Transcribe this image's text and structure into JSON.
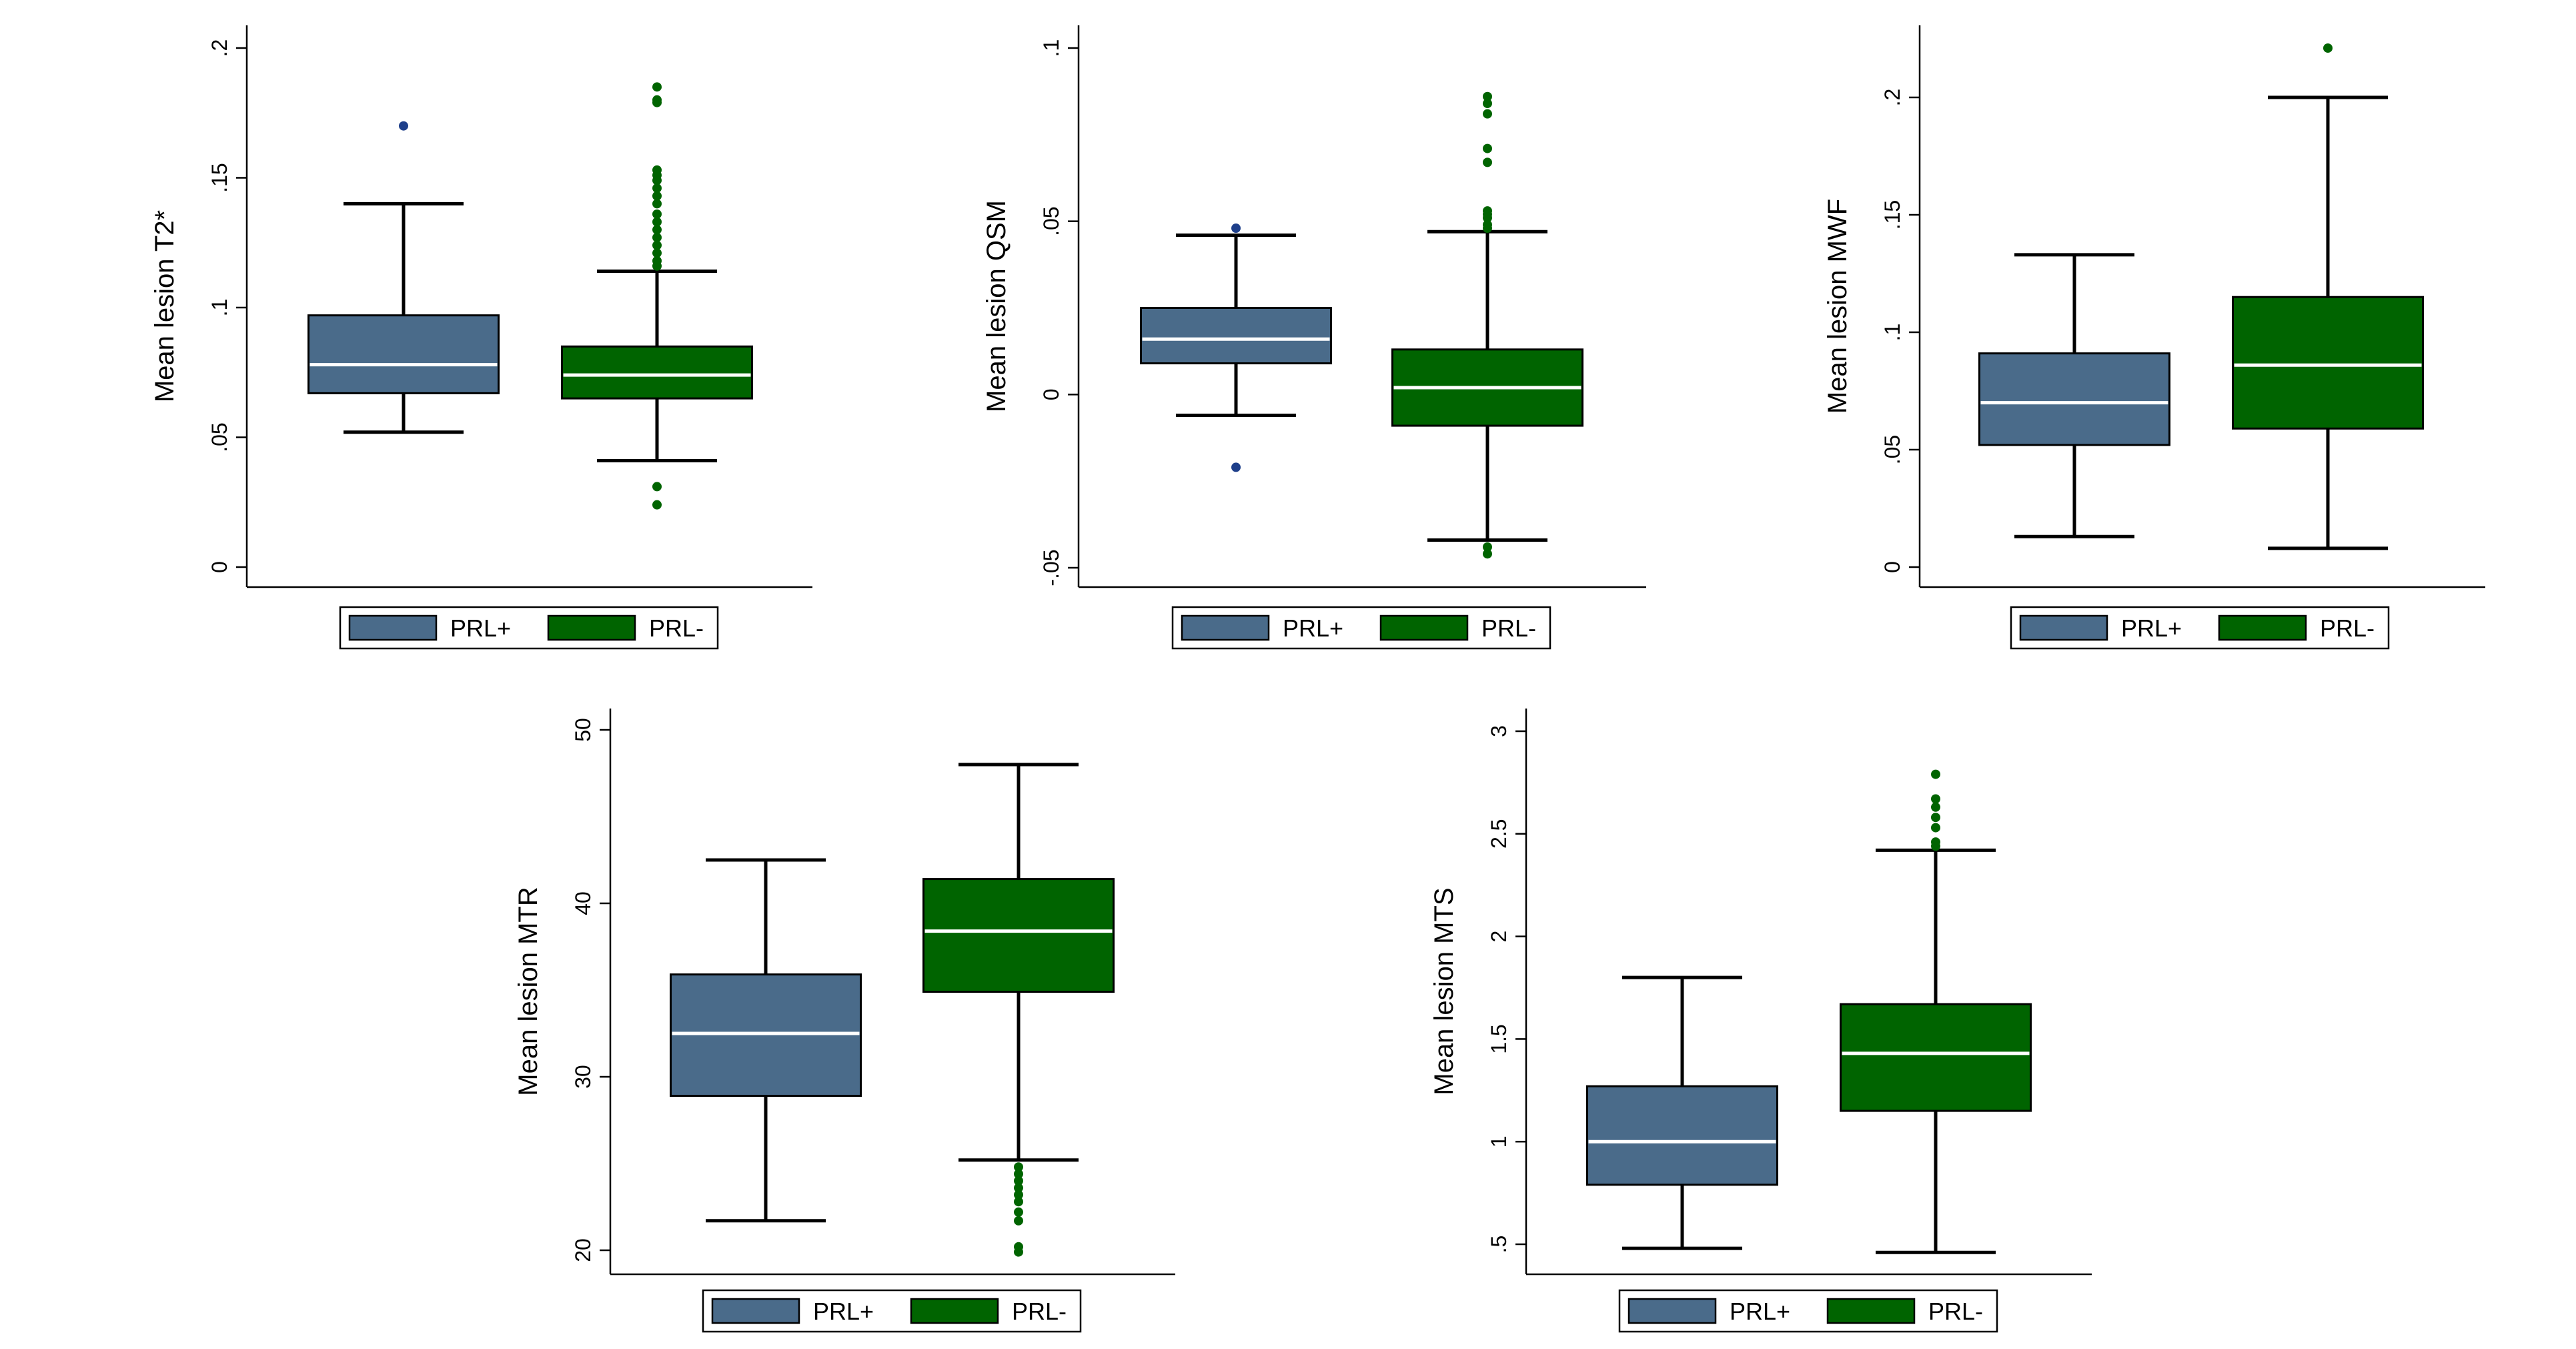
{
  "colors": {
    "prl_pos": "#4a6b8a",
    "prl_neg": "#006400",
    "outlier_pos": "#1e3f8a",
    "outlier_neg": "#006400"
  },
  "chart_data": [
    {
      "type": "box",
      "title": "",
      "ylabel": "Mean lesion T2*",
      "ylim": [
        0,
        0.2
      ],
      "yticks": [
        0,
        0.05,
        0.1,
        0.15,
        0.2
      ],
      "ytick_labels": [
        "0",
        ".05",
        ".1",
        ".15",
        ".2"
      ],
      "legend": [
        "PRL+",
        "PRL-"
      ],
      "series": [
        {
          "name": "PRL+",
          "whisker_low": 0.052,
          "q1": 0.067,
          "median": 0.078,
          "q3": 0.097,
          "whisker_high": 0.14,
          "outliers": [
            0.17
          ]
        },
        {
          "name": "PRL-",
          "whisker_low": 0.041,
          "q1": 0.065,
          "median": 0.074,
          "q3": 0.085,
          "whisker_high": 0.114,
          "outliers": [
            0.024,
            0.031,
            0.116,
            0.118,
            0.121,
            0.124,
            0.127,
            0.13,
            0.133,
            0.136,
            0.14,
            0.143,
            0.146,
            0.149,
            0.151,
            0.153,
            0.179,
            0.18,
            0.185
          ]
        }
      ]
    },
    {
      "type": "box",
      "title": "",
      "ylabel": "Mean lesion QSM",
      "ylim": [
        -0.05,
        0.1
      ],
      "yticks": [
        -0.05,
        0,
        0.05,
        0.1
      ],
      "ytick_labels": [
        "-.05",
        "0",
        ".05",
        ".1"
      ],
      "legend": [
        "PRL+",
        "PRL-"
      ],
      "series": [
        {
          "name": "PRL+",
          "whisker_low": -0.006,
          "q1": 0.009,
          "median": 0.016,
          "q3": 0.025,
          "whisker_high": 0.046,
          "outliers": [
            -0.021,
            0.048
          ]
        },
        {
          "name": "PRL-",
          "whisker_low": -0.042,
          "q1": -0.009,
          "median": 0.002,
          "q3": 0.013,
          "whisker_high": 0.047,
          "outliers": [
            -0.046,
            -0.044,
            0.048,
            0.049,
            0.051,
            0.052,
            0.053,
            0.067,
            0.071,
            0.081,
            0.084,
            0.086
          ]
        }
      ]
    },
    {
      "type": "box",
      "title": "",
      "ylabel": "Mean lesion MWF",
      "ylim": [
        0,
        0.2
      ],
      "yticks": [
        0,
        0.05,
        0.1,
        0.15,
        0.2
      ],
      "ytick_labels": [
        "0",
        ".05",
        ".1",
        ".15",
        ".2"
      ],
      "legend": [
        "PRL+",
        "PRL-"
      ],
      "series": [
        {
          "name": "PRL+",
          "whisker_low": 0.013,
          "q1": 0.052,
          "median": 0.07,
          "q3": 0.091,
          "whisker_high": 0.133,
          "outliers": []
        },
        {
          "name": "PRL-",
          "whisker_low": 0.008,
          "q1": 0.059,
          "median": 0.086,
          "q3": 0.115,
          "whisker_high": 0.2,
          "outliers": [
            0.221
          ]
        }
      ]
    },
    {
      "type": "box",
      "title": "",
      "ylabel": "Mean lesion MTR",
      "ylim": [
        20,
        50
      ],
      "yticks": [
        20,
        30,
        40,
        50
      ],
      "ytick_labels": [
        "20",
        "30",
        "40",
        "50"
      ],
      "legend": [
        "PRL+",
        "PRL-"
      ],
      "series": [
        {
          "name": "PRL+",
          "whisker_low": 21.7,
          "q1": 28.9,
          "median": 32.5,
          "q3": 35.9,
          "whisker_high": 42.5,
          "outliers": []
        },
        {
          "name": "PRL-",
          "whisker_low": 25.2,
          "q1": 34.9,
          "median": 38.4,
          "q3": 41.4,
          "whisker_high": 48.0,
          "outliers": [
            19.9,
            20.2,
            21.7,
            22.2,
            22.8,
            23.2,
            23.6,
            24.0,
            24.4,
            24.8
          ]
        }
      ]
    },
    {
      "type": "box",
      "title": "",
      "ylabel": "Mean lesion MTS",
      "ylim": [
        0.5,
        3
      ],
      "yticks": [
        0.5,
        1,
        1.5,
        2,
        2.5,
        3
      ],
      "ytick_labels": [
        ".5",
        "1",
        "1.5",
        "2",
        "2.5",
        "3"
      ],
      "legend": [
        "PRL+",
        "PRL-"
      ],
      "series": [
        {
          "name": "PRL+",
          "whisker_low": 0.48,
          "q1": 0.79,
          "median": 1.0,
          "q3": 1.27,
          "whisker_high": 1.8,
          "outliers": []
        },
        {
          "name": "PRL-",
          "whisker_low": 0.46,
          "q1": 1.15,
          "median": 1.43,
          "q3": 1.67,
          "whisker_high": 2.42,
          "outliers": [
            2.44,
            2.46,
            2.53,
            2.58,
            2.63,
            2.67,
            2.79
          ]
        }
      ]
    }
  ]
}
